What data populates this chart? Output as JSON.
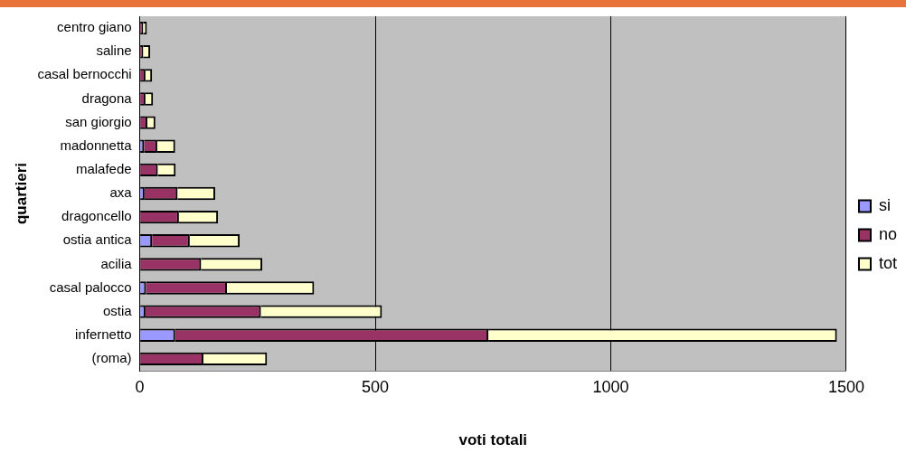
{
  "chart_data": {
    "type": "bar",
    "orientation": "horizontal",
    "stacked": true,
    "xlabel": "voti totali",
    "ylabel": "quartieri",
    "categories": [
      "centro giano",
      "saline",
      "casal bernocchi",
      "dragona",
      "san giorgio",
      "madonnetta",
      "malafede",
      "axa",
      "dragoncello",
      "ostia antica",
      "acilia",
      "casal palocco",
      "ostia",
      "infernetto",
      "(roma)"
    ],
    "series": [
      {
        "name": "si",
        "color": "#9999ff",
        "values": [
          null,
          null,
          null,
          null,
          null,
          9,
          null,
          10,
          null,
          26,
          null,
          13,
          12,
          75,
          null
        ]
      },
      {
        "name": "no",
        "color": "#993366",
        "values": [
          7,
          7,
          12,
          12,
          16,
          28,
          38,
          70,
          83,
          80,
          130,
          172,
          245,
          665,
          135
        ]
      },
      {
        "name": "tot",
        "color": "#ffffcc",
        "values": [
          8,
          15,
          14,
          16,
          17,
          38,
          38,
          80,
          83,
          106,
          130,
          185,
          257,
          740,
          135
        ]
      }
    ],
    "xlim": [
      0,
      1500
    ],
    "xticks": [
      0,
      500,
      1000,
      1500
    ],
    "grid": "x",
    "legend": "right"
  }
}
